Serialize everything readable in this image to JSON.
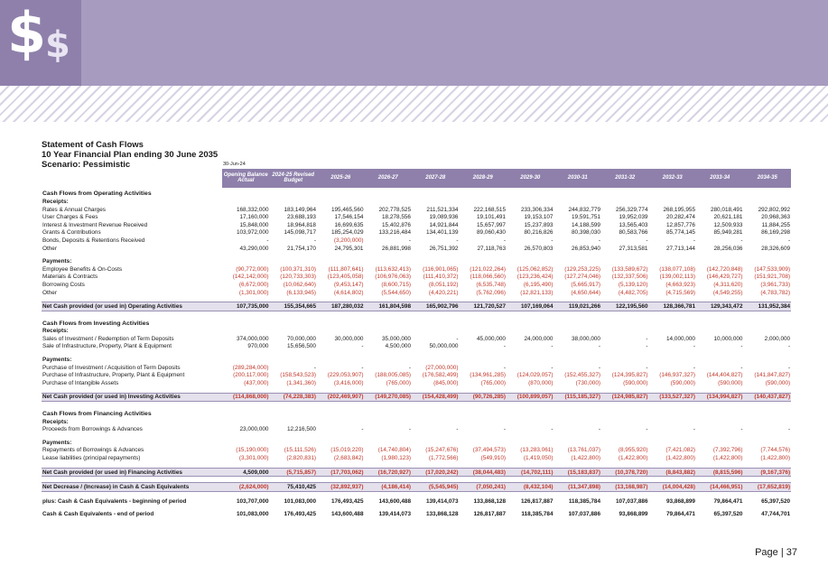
{
  "page_label": "Page | 37",
  "title": {
    "line1": "Statement of Cash Flows",
    "line2": "10 Year Financial Plan ending 30 June 2035",
    "line3": "Scenario: Pessimistic"
  },
  "as_of": "30-Jun-24",
  "columns": [
    "Opening Balance Actual",
    "2024-25 Revised Budget",
    "2025-26",
    "2026-27",
    "2027-28",
    "2028-29",
    "2029-30",
    "2030-31",
    "2031-32",
    "2032-33",
    "2033-34",
    "2034-35"
  ],
  "operating": {
    "heading": "Cash Flows from Operating Activities",
    "receipts_label": "Receipts:",
    "receipts": [
      {
        "label": "Rates & Annual Charges",
        "values": [
          "168,332,000",
          "183,149,964",
          "195,465,560",
          "202,778,525",
          "211,521,334",
          "222,168,515",
          "233,306,334",
          "244,832,779",
          "256,329,774",
          "268,195,955",
          "280,018,491",
          "292,802,992"
        ]
      },
      {
        "label": "User Charges & Fees",
        "values": [
          "17,160,000",
          "23,688,193",
          "17,546,154",
          "18,278,556",
          "19,089,936",
          "19,101,491",
          "19,153,107",
          "19,591,751",
          "19,952,039",
          "20,282,474",
          "20,621,181",
          "20,968,363"
        ]
      },
      {
        "label": "Interest & Investment Revenue Received",
        "values": [
          "15,848,000",
          "18,964,818",
          "16,699,635",
          "15,402,876",
          "14,921,844",
          "15,657,997",
          "15,237,893",
          "14,188,599",
          "13,565,403",
          "12,857,776",
          "12,509,933",
          "11,884,255"
        ]
      },
      {
        "label": "Grants & Contributions",
        "values": [
          "103,972,000",
          "145,098,717",
          "185,254,029",
          "133,216,484",
          "134,401,139",
          "89,060,430",
          "80,216,826",
          "80,398,030",
          "80,583,766",
          "85,774,145",
          "85,949,281",
          "86,169,298"
        ]
      },
      {
        "label": "Bonds, Deposits & Retentions Received",
        "values": [
          "-",
          "-",
          "(3,200,000)",
          "-",
          "-",
          "-",
          "-",
          "-",
          "-",
          "-",
          "-",
          "-"
        ]
      },
      {
        "label": "Other",
        "values": [
          "43,290,000",
          "21,754,170",
          "24,795,301",
          "26,881,998",
          "26,751,392",
          "27,118,763",
          "26,570,803",
          "26,853,940",
          "27,313,581",
          "27,713,144",
          "28,256,036",
          "28,326,609"
        ]
      }
    ],
    "payments_label": "Payments:",
    "payments": [
      {
        "label": "Employee Benefits & On-Costs",
        "values": [
          "(90,772,000)",
          "(100,371,310)",
          "(111,807,641)",
          "(113,632,413)",
          "(116,901,065)",
          "(121,022,264)",
          "(125,062,852)",
          "(129,253,225)",
          "(133,589,672)",
          "(138,077,108)",
          "(142,720,848)",
          "(147,533,909)"
        ]
      },
      {
        "label": "Materials & Contracts",
        "values": [
          "(142,142,000)",
          "(120,733,303)",
          "(123,405,058)",
          "(106,976,063)",
          "(111,410,372)",
          "(118,066,560)",
          "(123,236,424)",
          "(127,274,046)",
          "(132,337,506)",
          "(139,002,113)",
          "(146,429,727)",
          "(151,921,708)"
        ]
      },
      {
        "label": "Borrowing Costs",
        "values": [
          "(6,672,000)",
          "(10,062,640)",
          "(9,453,147)",
          "(8,600,715)",
          "(8,051,192)",
          "(6,535,748)",
          "(6,195,490)",
          "(5,665,917)",
          "(5,139,120)",
          "(4,663,923)",
          "(4,311,620)",
          "(3,961,733)"
        ]
      },
      {
        "label": "Other",
        "values": [
          "(1,301,000)",
          "(6,133,945)",
          "(4,614,802)",
          "(5,544,650)",
          "(4,420,221)",
          "(5,762,096)",
          "(12,821,133)",
          "(4,650,644)",
          "(4,482,705)",
          "(4,715,569)",
          "(4,549,255)",
          "(4,783,782)"
        ]
      }
    ],
    "net_label": "Net Cash provided (or used in) Operating Activities",
    "net_values": [
      "107,735,000",
      "155,354,665",
      "187,280,032",
      "161,804,598",
      "165,902,796",
      "121,720,527",
      "107,169,064",
      "119,021,266",
      "122,195,560",
      "128,366,781",
      "129,343,472",
      "131,952,384"
    ]
  },
  "investing": {
    "heading": "Cash Flows from Investing Activities",
    "receipts_label": "Receipts:",
    "receipts": [
      {
        "label": "Sales of Investment / Redemption of Term Deposits",
        "values": [
          "374,000,000",
          "70,000,000",
          "30,000,000",
          "35,000,000",
          "-",
          "45,000,000",
          "24,000,000",
          "38,000,000",
          "-",
          "14,000,000",
          "10,000,000",
          "2,000,000"
        ]
      },
      {
        "label": "Sale of Infrastructure, Property, Plant & Equipment",
        "values": [
          "970,000",
          "15,656,500",
          "-",
          "4,500,000",
          "50,000,000",
          "-",
          "-",
          "-",
          "-",
          "-",
          "-",
          "-"
        ]
      }
    ],
    "payments_label": "Payments:",
    "payments": [
      {
        "label": "Purchase of Investment / Acquisition of Term Deposits",
        "values": [
          "(289,284,000)",
          "-",
          "-",
          "-",
          "(27,000,000)",
          "-",
          "-",
          "-",
          "-",
          "-",
          "-",
          "-"
        ]
      },
      {
        "label": "Purchase of Infrastructure, Property, Plant & Equipment",
        "values": [
          "(200,117,000)",
          "(158,543,523)",
          "(229,053,907)",
          "(188,005,085)",
          "(176,582,499)",
          "(134,961,285)",
          "(124,029,057)",
          "(152,455,327)",
          "(124,395,827)",
          "(146,937,327)",
          "(144,404,827)",
          "(141,847,827)"
        ]
      },
      {
        "label": "Purchase of Intangible Assets",
        "values": [
          "(437,000)",
          "(1,341,360)",
          "(3,416,000)",
          "(765,000)",
          "(845,000)",
          "(765,000)",
          "(870,000)",
          "(730,000)",
          "(590,000)",
          "(590,000)",
          "(590,000)",
          "(590,000)"
        ]
      }
    ],
    "net_label": "Net Cash provided (or used in) Investing Activities",
    "net_values": [
      "(114,868,000)",
      "(74,228,383)",
      "(202,469,907)",
      "(149,270,085)",
      "(154,428,499)",
      "(90,726,285)",
      "(100,899,057)",
      "(115,185,327)",
      "(124,985,827)",
      "(133,527,327)",
      "(134,994,827)",
      "(140,437,827)"
    ]
  },
  "financing": {
    "heading": "Cash Flows from Financing Activities",
    "receipts_label": "Receipts:",
    "receipts": [
      {
        "label": "Proceeds from Borrowings & Advances",
        "values": [
          "23,000,000",
          "12,216,500",
          "-",
          "-",
          "-",
          "-",
          "-",
          "-",
          "-",
          "-",
          "-",
          "-"
        ]
      }
    ],
    "payments_label": "Payments:",
    "payments": [
      {
        "label": "Repayments of Borrowings & Advances",
        "values": [
          "(15,190,000)",
          "(15,111,526)",
          "(15,019,220)",
          "(14,740,804)",
          "(15,247,676)",
          "(37,494,573)",
          "(13,283,061)",
          "(13,761,037)",
          "(8,955,920)",
          "(7,421,082)",
          "(7,392,796)",
          "(7,744,576)"
        ]
      },
      {
        "label": "Lease liabilities (principal repayments)",
        "values": [
          "(3,301,000)",
          "(2,820,831)",
          "(2,683,842)",
          "(1,980,123)",
          "(1,772,566)",
          "(549,910)",
          "(1,419,050)",
          "(1,422,800)",
          "(1,422,800)",
          "(1,422,800)",
          "(1,422,800)",
          "(1,422,800)"
        ]
      }
    ],
    "net_label": "Net Cash provided (or used in) Financing Activities",
    "net_values": [
      "4,509,000",
      "(5,715,857)",
      "(17,703,062)",
      "(16,720,927)",
      "(17,020,242)",
      "(38,044,483)",
      "(14,702,111)",
      "(15,183,837)",
      "(10,378,720)",
      "(8,843,882)",
      "(8,815,596)",
      "(9,167,376)"
    ]
  },
  "net_change": {
    "label": "Net Decrease / (Increase) in Cash & Cash Equivalents",
    "values": [
      "(2,624,000)",
      "75,410,425",
      "(32,892,937)",
      "(4,186,414)",
      "(5,545,945)",
      "(7,050,241)",
      "(8,432,104)",
      "(11,347,898)",
      "(13,168,987)",
      "(14,004,428)",
      "(14,466,951)",
      "(17,652,819)"
    ]
  },
  "beginning": {
    "label": "plus: Cash & Cash Equivalents - beginning of period",
    "values": [
      "103,707,000",
      "101,083,000",
      "176,493,425",
      "143,600,488",
      "139,414,073",
      "133,868,128",
      "126,817,887",
      "118,385,784",
      "107,037,886",
      "93,868,899",
      "79,864,471",
      "65,397,520"
    ]
  },
  "ending": {
    "label": "Cash & Cash Equivalents - end of period",
    "values": [
      "101,083,000",
      "176,493,425",
      "143,600,488",
      "139,414,073",
      "133,868,128",
      "126,817,887",
      "118,385,784",
      "107,037,886",
      "93,868,899",
      "79,864,471",
      "65,397,520",
      "47,744,701"
    ]
  }
}
